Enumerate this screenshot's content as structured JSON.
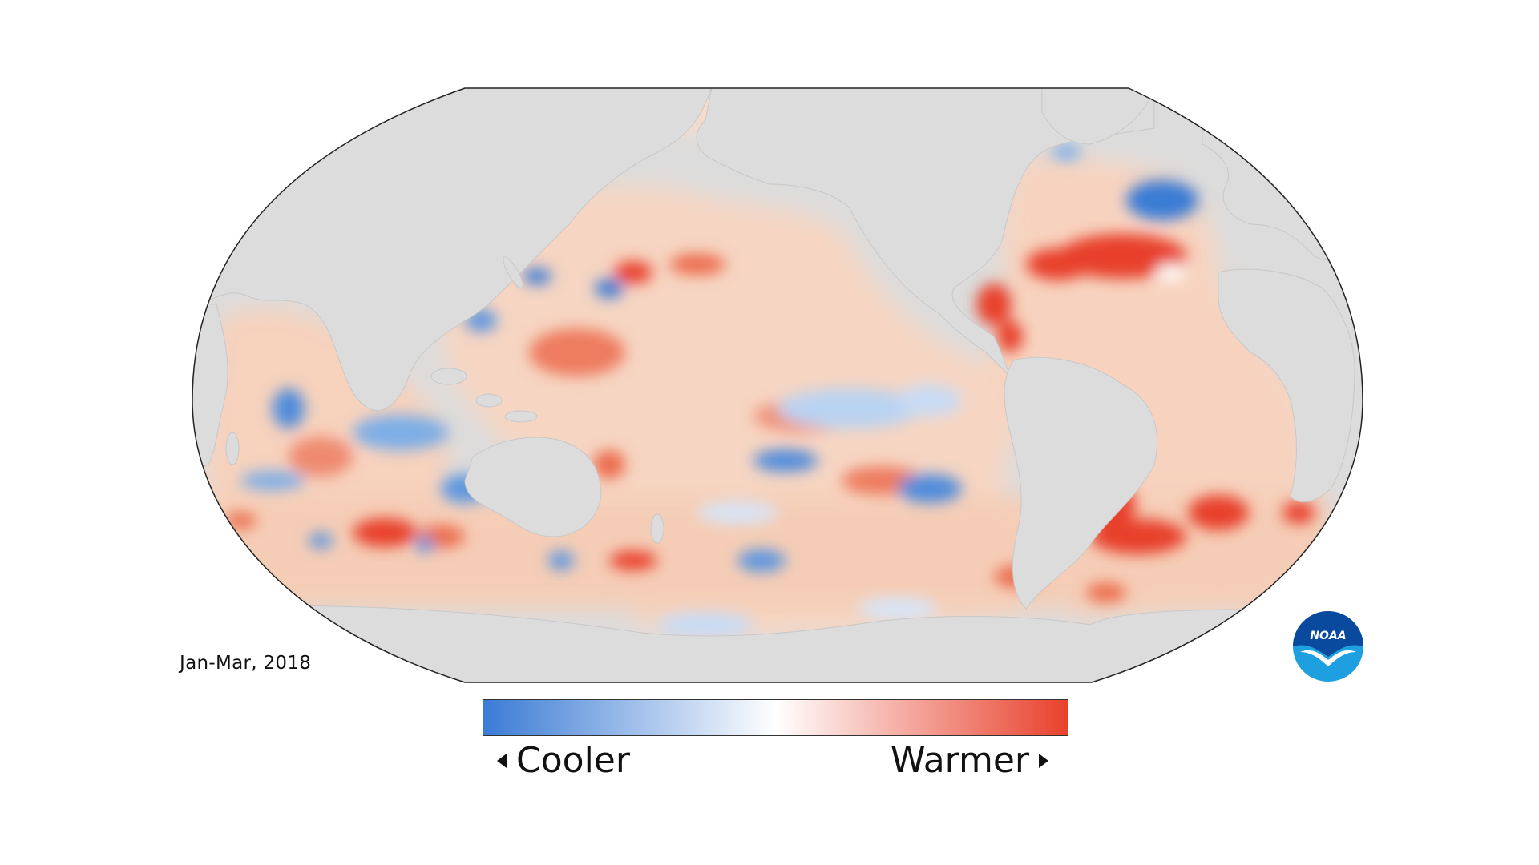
{
  "map": {
    "title": "",
    "period": "Jan-Mar, 2018",
    "projection": "robinson",
    "land_color": "#dcdcdc",
    "ocean_neutral_color": "#ffffff",
    "border_color": "#222222"
  },
  "legend": {
    "cool_label": "Cooler",
    "warm_label": "Warmer",
    "cool_color": "#3a7bd5",
    "mid_color": "#ffffff",
    "warm_color": "#e8412c"
  },
  "logo": {
    "text": "NOAA",
    "icon": "noaa-logo-icon",
    "primary_color": "#0a4a9e",
    "accent_color": "#1ea0e0"
  }
}
